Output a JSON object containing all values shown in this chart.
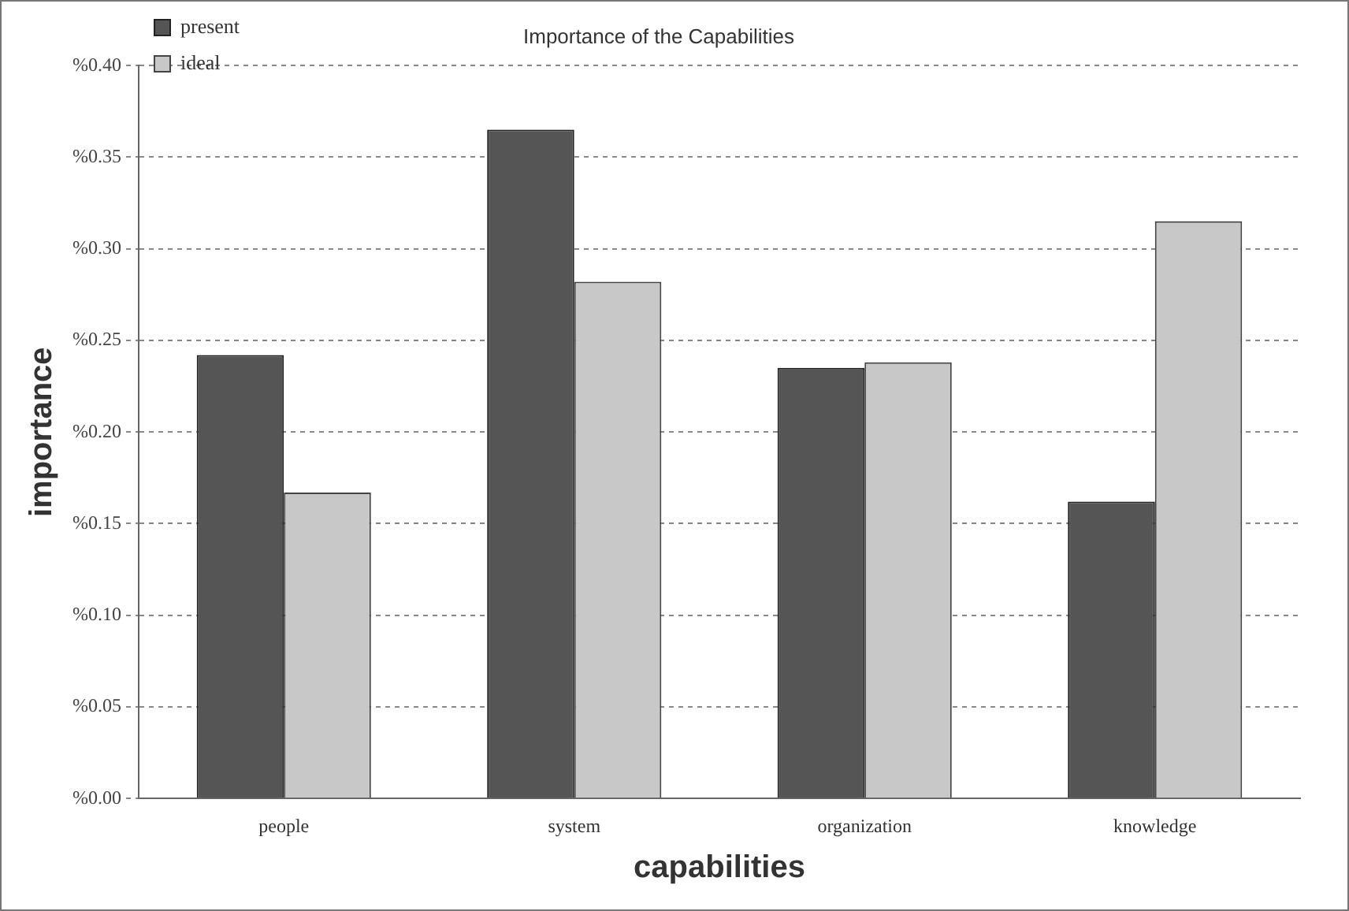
{
  "chart_data": {
    "type": "bar",
    "title": "Importance of the Capabilities",
    "xlabel": "capabilities",
    "ylabel": "importance",
    "categories": [
      "people",
      "system",
      "organization",
      "knowledge"
    ],
    "series": [
      {
        "name": "present",
        "color": "#555555",
        "values": [
          0.242,
          0.365,
          0.235,
          0.162
        ]
      },
      {
        "name": "ideal",
        "color": "#c8c8c8",
        "values": [
          0.167,
          0.282,
          0.238,
          0.315
        ]
      }
    ],
    "ylim": [
      0,
      0.4
    ],
    "yticks": [
      {
        "value": 0,
        "label": "%0.00"
      },
      {
        "value": 0.05,
        "label": "%0.05"
      },
      {
        "value": 0.1,
        "label": "%0.10"
      },
      {
        "value": 0.15,
        "label": "%0.15"
      },
      {
        "value": 0.2,
        "label": "%0.20"
      },
      {
        "value": 0.25,
        "label": "%0.25"
      },
      {
        "value": 0.3,
        "label": "%0.30"
      },
      {
        "value": 0.35,
        "label": "%0.35"
      },
      {
        "value": 0.4,
        "label": "%0.40"
      }
    ],
    "grid": "y",
    "legend": "top left"
  }
}
